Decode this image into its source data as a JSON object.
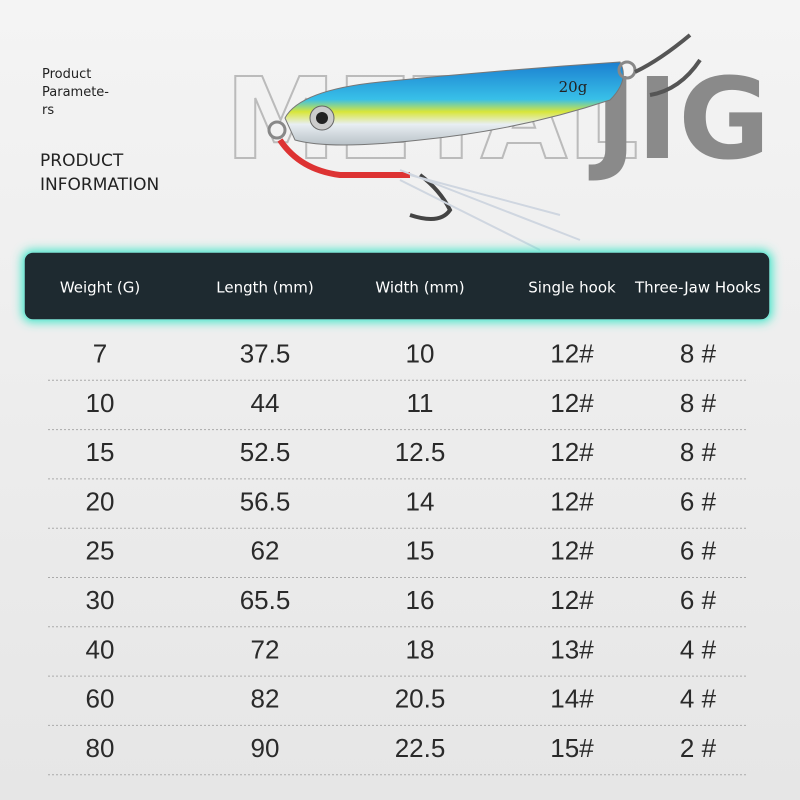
{
  "intro": {
    "lines": [
      "Product",
      "Paramete-",
      "rs"
    ],
    "heading": [
      "PRODUCT",
      "INFORMATION"
    ]
  },
  "banner": {
    "word1": "METAL",
    "word2": "JIG",
    "lure_label": "20g"
  },
  "table": {
    "headers": [
      "Weight (G)",
      "Length (mm)",
      "Width (mm)",
      "Single hook",
      "Three-Jaw Hooks"
    ],
    "rows": [
      [
        "7",
        "37.5",
        "10",
        "12#",
        "8 #"
      ],
      [
        "10",
        "44",
        "11",
        "12#",
        "8 #"
      ],
      [
        "15",
        "52.5",
        "12.5",
        "12#",
        "8 #"
      ],
      [
        "20",
        "56.5",
        "14",
        "12#",
        "6 #"
      ],
      [
        "25",
        "62",
        "15",
        "12#",
        "6 #"
      ],
      [
        "30",
        "65.5",
        "16",
        "12#",
        "6 #"
      ],
      [
        "40",
        "72",
        "18",
        "13#",
        "4 #"
      ],
      [
        "60",
        "82",
        "20.5",
        "14#",
        "4 #"
      ],
      [
        "80",
        "90",
        "22.5",
        "15#",
        "2 #"
      ]
    ]
  }
}
